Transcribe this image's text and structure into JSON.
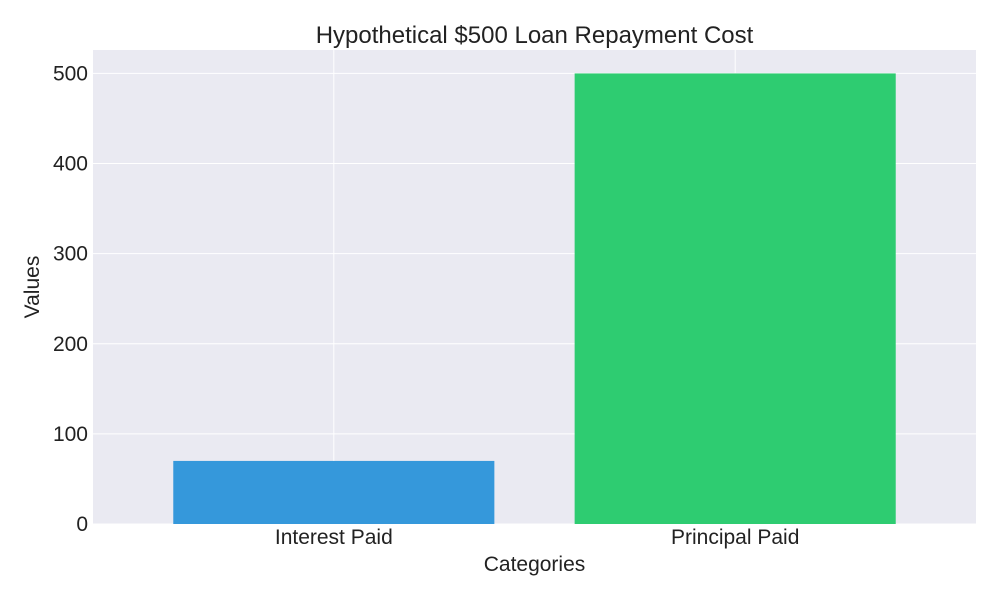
{
  "chart_data": {
    "type": "bar",
    "title": "Hypothetical $500 Loan Repayment Cost",
    "xlabel": "Categories",
    "ylabel": "Values",
    "categories": [
      "Interest Paid",
      "Principal Paid"
    ],
    "values": [
      70,
      500
    ],
    "colors": [
      "#3598db",
      "#2ecc71"
    ],
    "ylim": [
      0,
      526
    ],
    "yticks": [
      0,
      100,
      200,
      300,
      400,
      500
    ],
    "grid": true,
    "background": "#eaeaf2"
  }
}
